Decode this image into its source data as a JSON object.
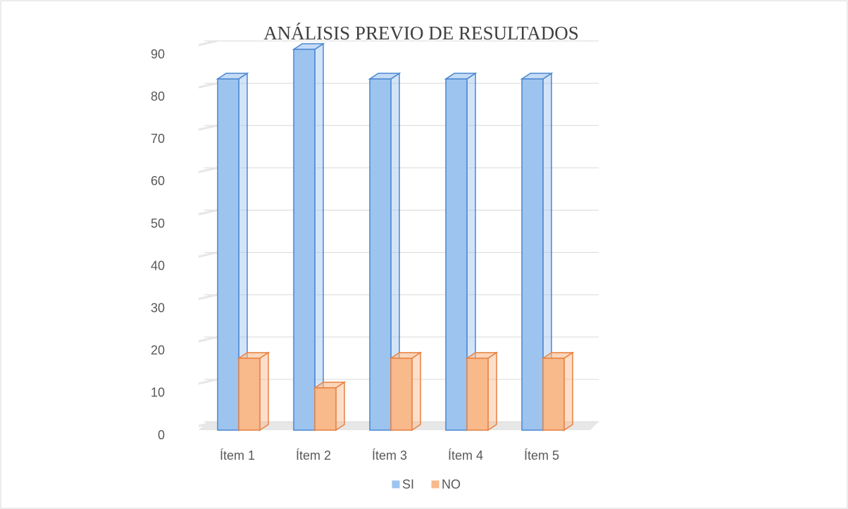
{
  "chart_data": {
    "type": "bar3d",
    "title": "ANÁLISIS PREVIO DE RESULTADOS",
    "categories": [
      "Ítem 1",
      "Ítem 2",
      "Ítem 3",
      "Ítem 4",
      "Ítem 5"
    ],
    "series": [
      {
        "name": "SI",
        "color": "#9dc3ef",
        "values": [
          83,
          90,
          83,
          83,
          83
        ]
      },
      {
        "name": "NO",
        "color": "#f8b98b",
        "values": [
          17,
          10,
          17,
          17,
          17
        ]
      }
    ],
    "ylim": [
      0,
      90
    ],
    "yticks": [
      0,
      10,
      20,
      30,
      40,
      50,
      60,
      70,
      80,
      90
    ],
    "grid": true,
    "legend": "bottom"
  }
}
